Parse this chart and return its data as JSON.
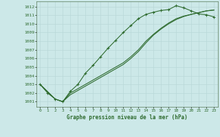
{
  "xlabel": "Graphe pression niveau de la mer (hPa)",
  "background_color": "#cce8e8",
  "grid_color": "#b8d8d8",
  "line_color": "#2d6a2d",
  "xlim_min": -0.5,
  "xlim_max": 23.5,
  "ylim_min": 1000.4,
  "ylim_max": 1012.6,
  "yticks": [
    1001,
    1002,
    1003,
    1004,
    1005,
    1006,
    1007,
    1008,
    1009,
    1010,
    1011,
    1012
  ],
  "xticks": [
    0,
    1,
    2,
    3,
    4,
    5,
    6,
    7,
    8,
    9,
    10,
    11,
    12,
    13,
    14,
    15,
    16,
    17,
    18,
    19,
    20,
    21,
    22,
    23
  ],
  "curve1_x": [
    0,
    1,
    2,
    3,
    4,
    5,
    6,
    7,
    8,
    9,
    10,
    11,
    12,
    13,
    14,
    15,
    16,
    17,
    18,
    19,
    20,
    21,
    22,
    23
  ],
  "curve1_y": [
    1003.0,
    1002.0,
    1001.3,
    1001.0,
    1002.2,
    1003.0,
    1004.3,
    1005.2,
    1006.2,
    1007.2,
    1008.1,
    1009.0,
    1009.8,
    1010.6,
    1011.1,
    1011.35,
    1011.55,
    1011.65,
    1012.1,
    1011.85,
    1011.5,
    1011.15,
    1011.05,
    1010.8
  ],
  "curve2_x": [
    0,
    2,
    3,
    4,
    5,
    6,
    7,
    8,
    9,
    10,
    11,
    12,
    13,
    14,
    15,
    16,
    17,
    18,
    19,
    20,
    21,
    22,
    23
  ],
  "curve2_y": [
    1003.0,
    1001.3,
    1001.0,
    1002.0,
    1002.5,
    1003.0,
    1003.5,
    1004.0,
    1004.5,
    1005.0,
    1005.5,
    1006.2,
    1007.0,
    1008.0,
    1008.8,
    1009.5,
    1010.1,
    1010.6,
    1010.9,
    1011.1,
    1011.3,
    1011.5,
    1011.6
  ],
  "curve3_x": [
    0,
    2,
    3,
    4,
    5,
    6,
    7,
    8,
    9,
    10,
    11,
    12,
    13,
    14,
    15,
    16,
    17,
    18,
    19,
    20,
    21,
    22,
    23
  ],
  "curve3_y": [
    1003.0,
    1001.3,
    1001.0,
    1001.8,
    1002.3,
    1002.8,
    1003.3,
    1003.8,
    1004.3,
    1004.8,
    1005.3,
    1006.0,
    1006.8,
    1007.8,
    1008.7,
    1009.4,
    1010.0,
    1010.5,
    1010.85,
    1011.1,
    1011.3,
    1011.5,
    1011.6
  ]
}
